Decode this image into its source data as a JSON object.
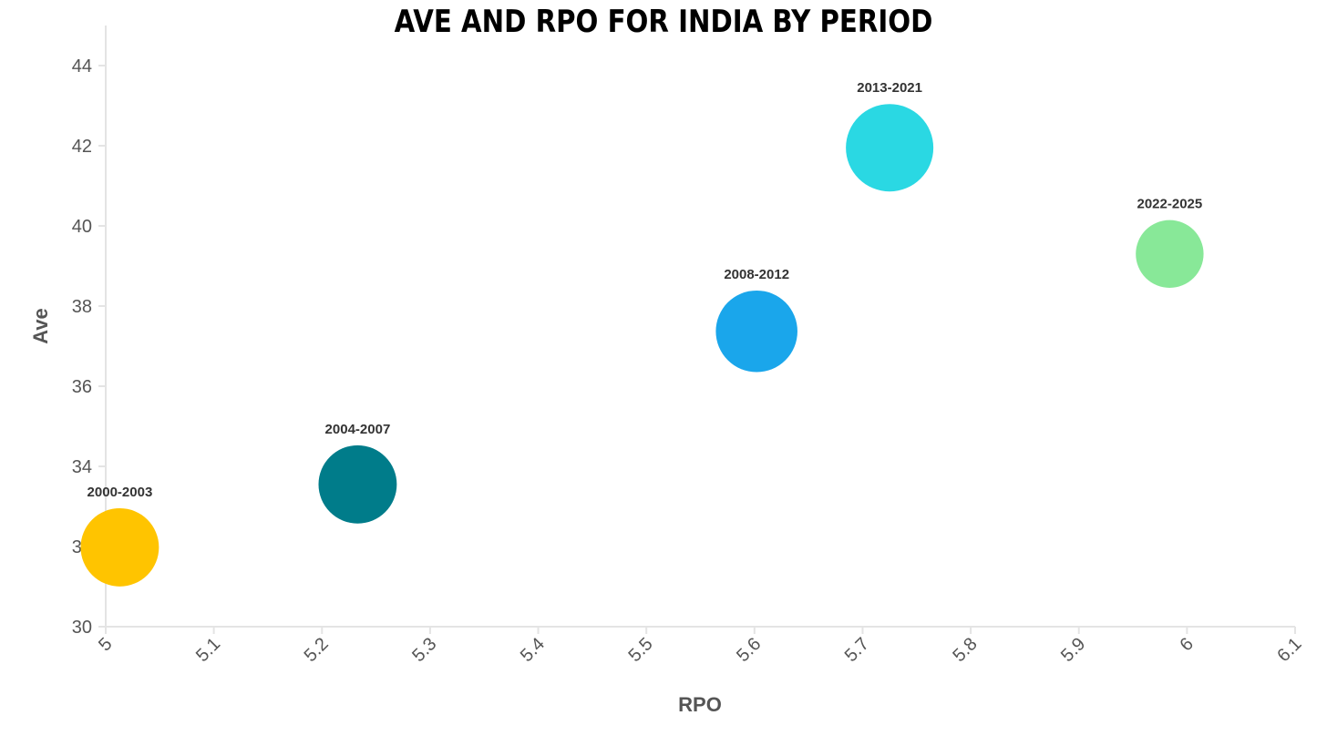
{
  "chart_data": {
    "type": "scatter",
    "title": "AVE AND RPO FOR INDIA BY PERIOD",
    "xlabel": "RPO",
    "ylabel": "Ave",
    "xlim": [
      5,
      6.1
    ],
    "ylim": [
      30,
      45
    ],
    "x_ticks": [
      5,
      5.1,
      5.2,
      5.3,
      5.4,
      5.5,
      5.6,
      5.7,
      5.8,
      5.9,
      6,
      6.1
    ],
    "y_ticks": [
      30,
      32,
      34,
      36,
      38,
      40,
      42,
      44
    ],
    "grid": false,
    "points": [
      {
        "label": "2000-2003",
        "x": 5.013,
        "y": 31.98,
        "size": 0.8,
        "color": "#FFC400"
      },
      {
        "label": "2004-2007",
        "x": 5.233,
        "y": 33.55,
        "size": 0.8,
        "color": "#007C8A"
      },
      {
        "label": "2008-2012",
        "x": 5.602,
        "y": 37.37,
        "size": 0.87,
        "color": "#1AA6EB"
      },
      {
        "label": "2013-2021",
        "x": 5.725,
        "y": 41.95,
        "size": 1.0,
        "color": "#2AD8E3"
      },
      {
        "label": "2022-2025",
        "x": 5.984,
        "y": 39.3,
        "size": 0.6,
        "color": "#88E898"
      }
    ]
  }
}
